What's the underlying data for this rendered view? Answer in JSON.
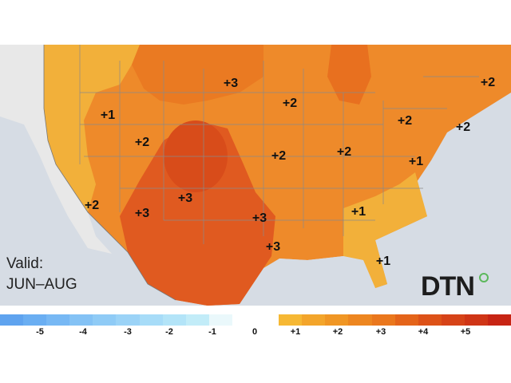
{
  "valid": {
    "line1": "Valid:",
    "line2": "JUN–AUG"
  },
  "logo": {
    "text": "DTN"
  },
  "anomalies": [
    "+3",
    "+2",
    "+1",
    "+2",
    "+2",
    "+2",
    "+2",
    "+2",
    "+1",
    "+2",
    "+3",
    "+3",
    "+3",
    "+1",
    "+3",
    "+1",
    "+2"
  ],
  "legend": {
    "ticks": [
      "-5",
      "-4",
      "-3",
      "-2",
      "-1",
      "0",
      "+1",
      "+2",
      "+3",
      "+4",
      "+5"
    ],
    "colors": [
      "#5fa3ef",
      "#6aaef2",
      "#77b8f4",
      "#84c2f5",
      "#8fcbf6",
      "#9bd3f7",
      "#a7dcf8",
      "#b3e4f8",
      "#c2ecf8",
      "#eaf8fb",
      "#ffffff",
      "#ffffff",
      "#f6b834",
      "#f3a52b",
      "#f09624",
      "#ed8620",
      "#ea771d",
      "#e4641a",
      "#dd5218",
      "#d64318",
      "#cf3516",
      "#c72414"
    ]
  },
  "colors": {
    "plus1": "#f2b03a",
    "plus2": "#ee8a2a",
    "plus3": "#e05a20",
    "water": "#d6dce4",
    "land": "#f0f0f0"
  }
}
